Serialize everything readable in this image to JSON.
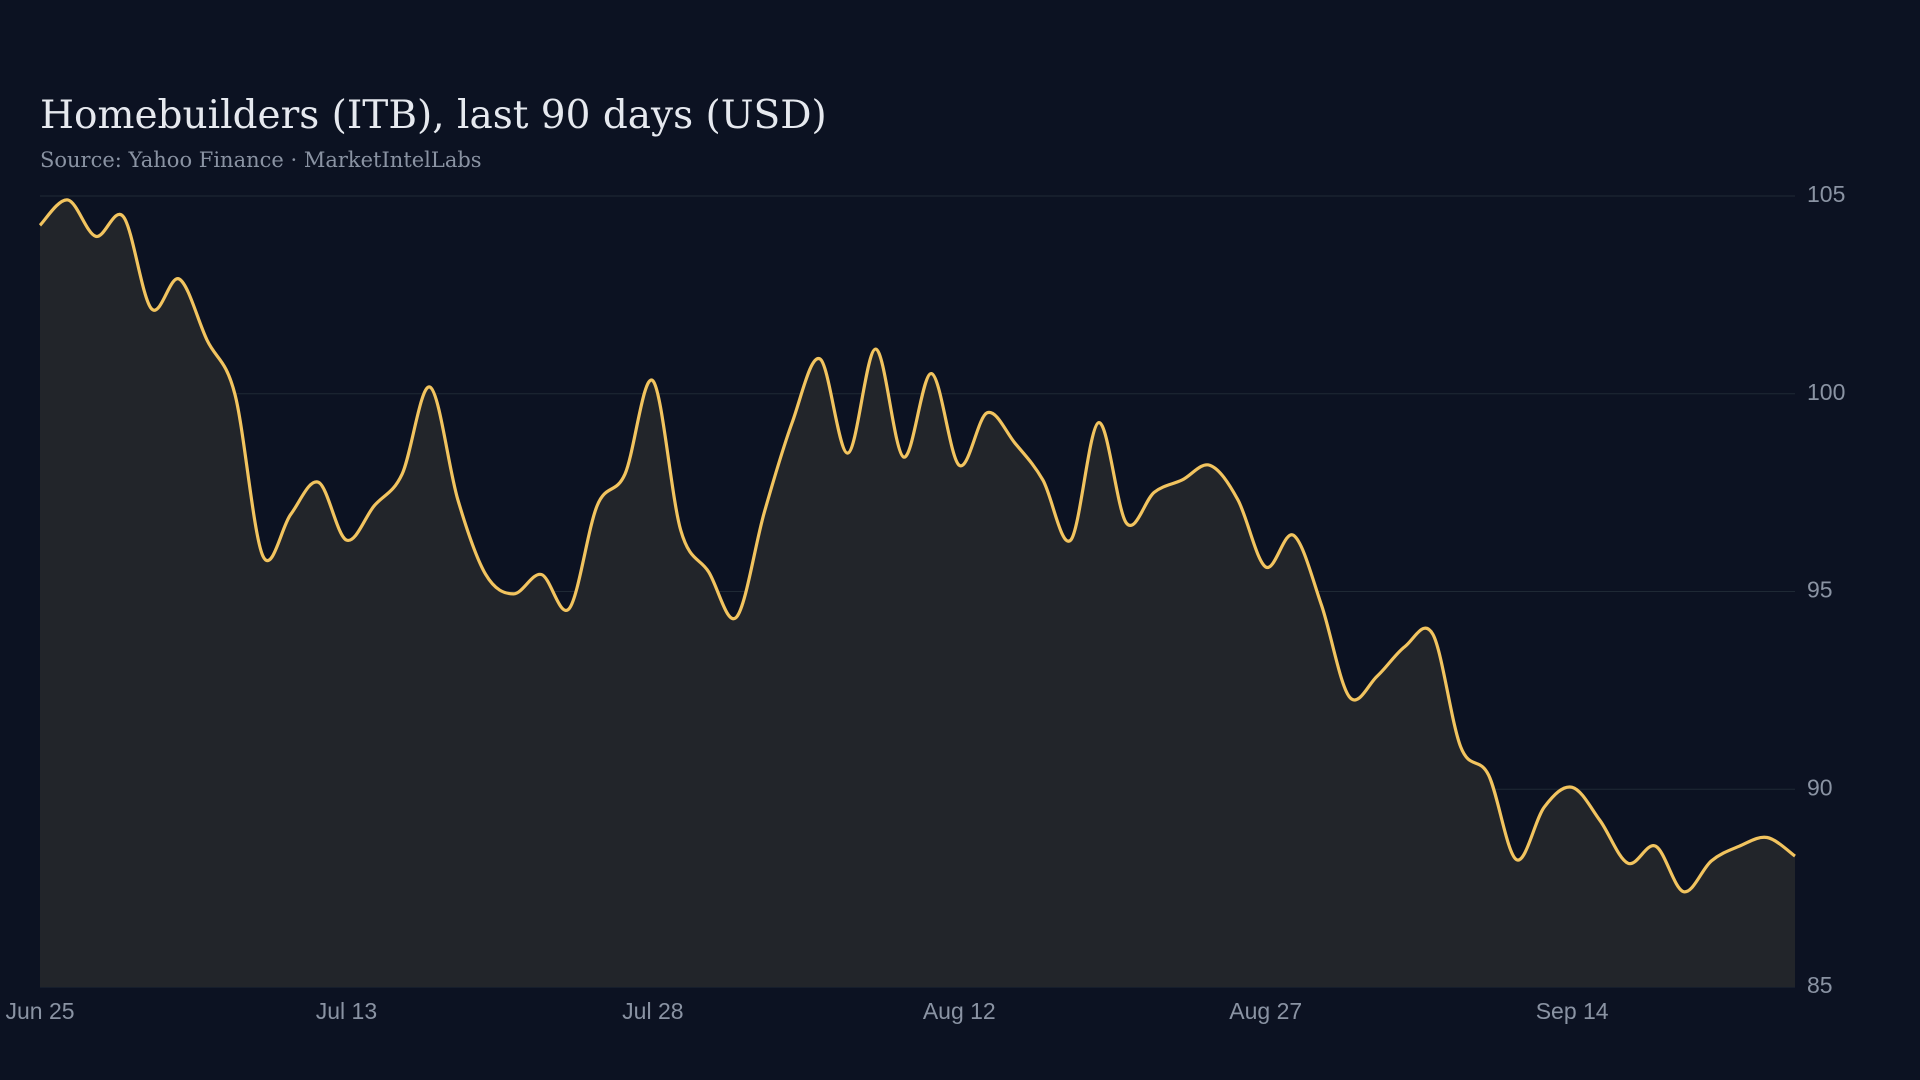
{
  "chart_data": {
    "type": "line",
    "title": "Homebuilders (ITB), last 90 days (USD)",
    "subtitle": "Source: Yahoo Finance · MarketIntelLabs",
    "categories": [
      "Jun 25",
      null,
      null,
      null,
      null,
      null,
      null,
      null,
      null,
      null,
      null,
      "Jul 13",
      null,
      null,
      null,
      null,
      null,
      null,
      null,
      null,
      null,
      null,
      "Jul 28",
      null,
      null,
      null,
      null,
      null,
      null,
      null,
      null,
      null,
      null,
      "Aug 12",
      null,
      null,
      null,
      null,
      null,
      null,
      null,
      null,
      null,
      null,
      "Aug 27",
      null,
      null,
      null,
      null,
      null,
      null,
      null,
      null,
      null,
      null,
      "Sep 14",
      null,
      null,
      null,
      null,
      null,
      null,
      null,
      null
    ],
    "series": [
      {
        "name": "ITB",
        "color": "#f2c45f",
        "values": [
          104.26,
          104.9,
          103.98,
          104.47,
          102.15,
          102.9,
          101.35,
          99.98,
          95.9,
          96.95,
          97.76,
          96.3,
          97.17,
          97.97,
          100.17,
          97.32,
          95.43,
          94.94,
          95.43,
          94.57,
          97.17,
          97.97,
          100.33,
          96.55,
          95.5,
          94.35,
          97.0,
          99.27,
          100.88,
          98.5,
          101.13,
          98.4,
          100.51,
          98.19,
          99.52,
          98.75,
          97.82,
          96.3,
          99.27,
          96.73,
          97.51,
          97.82,
          98.19,
          97.32,
          95.62,
          96.42,
          94.66,
          92.34,
          92.86,
          93.61,
          93.92,
          91.07,
          90.36,
          88.22,
          89.55,
          90.05,
          89.21,
          88.13,
          88.56,
          87.41,
          88.19,
          88.56,
          88.78,
          88.31
        ]
      }
    ],
    "ylim": [
      85,
      105
    ],
    "yticks": [
      85,
      90,
      95,
      100,
      105
    ],
    "grid": true,
    "area": true
  }
}
